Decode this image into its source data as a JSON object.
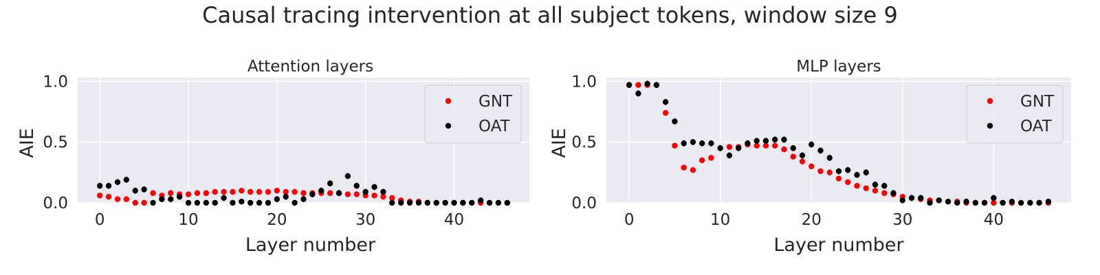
{
  "figure": {
    "title": "Causal tracing intervention at all subject tokens, window size 9"
  },
  "chart_data": [
    {
      "type": "scatter",
      "title": "Attention layers",
      "xlabel": "Layer number",
      "ylabel": "AIE",
      "xlim": [
        -2.5,
        48.5
      ],
      "ylim": [
        0,
        1.03
      ],
      "xticks": [
        0,
        10,
        20,
        30,
        40
      ],
      "yticks": [
        0.0,
        0.5,
        1.0
      ],
      "xtick_labels": [
        "0",
        "10",
        "20",
        "30",
        "40"
      ],
      "ytick_labels": [
        "0.0",
        "0.5",
        "1.0"
      ],
      "grid": true,
      "legend_position": "top-right",
      "series": [
        {
          "name": "GNT",
          "color": "#ff0000",
          "x": [
            0,
            1,
            2,
            3,
            4,
            5,
            6,
            7,
            8,
            9,
            10,
            11,
            12,
            13,
            14,
            15,
            16,
            17,
            18,
            19,
            20,
            21,
            22,
            23,
            24,
            25,
            26,
            27,
            28,
            29,
            30,
            31,
            32,
            33,
            34,
            35,
            36,
            37,
            38,
            39,
            40,
            41,
            42,
            43,
            44,
            45,
            46
          ],
          "y": [
            0.06,
            0.05,
            0.03,
            0.03,
            0.0,
            0.0,
            0.08,
            0.06,
            0.08,
            0.07,
            0.07,
            0.08,
            0.08,
            0.09,
            0.09,
            0.09,
            0.1,
            0.09,
            0.09,
            0.09,
            0.1,
            0.09,
            0.09,
            0.08,
            0.08,
            0.08,
            0.08,
            0.08,
            0.07,
            0.07,
            0.06,
            0.06,
            0.05,
            0.04,
            0.02,
            0.01,
            0.01,
            0.0,
            0.0,
            0.0,
            0.0,
            0.0,
            0.0,
            0.0,
            0.0,
            0.0,
            0.0
          ]
        },
        {
          "name": "OAT",
          "color": "#000000",
          "x": [
            0,
            1,
            2,
            3,
            4,
            5,
            6,
            7,
            8,
            9,
            10,
            11,
            12,
            13,
            14,
            15,
            16,
            17,
            18,
            19,
            20,
            21,
            22,
            23,
            24,
            25,
            26,
            27,
            28,
            29,
            30,
            31,
            32,
            33,
            34,
            35,
            36,
            37,
            38,
            39,
            40,
            41,
            42,
            43,
            44,
            45,
            46
          ],
          "y": [
            0.14,
            0.14,
            0.17,
            0.19,
            0.1,
            0.11,
            0.0,
            0.03,
            0.03,
            0.05,
            0.0,
            0.0,
            0.0,
            0.0,
            0.04,
            0.0,
            0.01,
            0.0,
            0.0,
            0.0,
            0.03,
            0.05,
            0.0,
            0.03,
            0.07,
            0.1,
            0.16,
            0.08,
            0.22,
            0.14,
            0.09,
            0.13,
            0.09,
            0.0,
            0.0,
            0.0,
            0.0,
            0.0,
            0.0,
            0.0,
            0.0,
            0.0,
            0.0,
            0.02,
            0.0,
            0.0,
            0.0
          ]
        }
      ]
    },
    {
      "type": "scatter",
      "title": "MLP layers",
      "xlabel": "Layer number",
      "ylabel": "AIE",
      "xlim": [
        -2.5,
        48.5
      ],
      "ylim": [
        0,
        1.03
      ],
      "xticks": [
        0,
        10,
        20,
        30,
        40
      ],
      "yticks": [
        0.0,
        0.5,
        1.0
      ],
      "xtick_labels": [
        "0",
        "10",
        "20",
        "30",
        "40"
      ],
      "ytick_labels": [
        "0.0",
        "0.5",
        "1.0"
      ],
      "grid": true,
      "legend_position": "top-right",
      "series": [
        {
          "name": "GNT",
          "color": "#ff0000",
          "x": [
            0,
            1,
            2,
            3,
            4,
            5,
            6,
            7,
            8,
            9,
            10,
            11,
            12,
            13,
            14,
            15,
            16,
            17,
            18,
            19,
            20,
            21,
            22,
            23,
            24,
            25,
            26,
            27,
            28,
            29,
            30,
            31,
            32,
            33,
            34,
            35,
            36,
            37,
            38,
            39,
            40,
            41,
            42,
            43,
            44,
            45,
            46
          ],
          "y": [
            0.97,
            0.97,
            0.97,
            0.97,
            0.74,
            0.47,
            0.29,
            0.27,
            0.35,
            0.37,
            0.45,
            0.46,
            0.46,
            0.48,
            0.47,
            0.47,
            0.47,
            0.44,
            0.38,
            0.34,
            0.3,
            0.26,
            0.25,
            0.2,
            0.17,
            0.14,
            0.12,
            0.1,
            0.08,
            0.07,
            0.05,
            0.04,
            0.03,
            0.02,
            0.02,
            0.01,
            0.01,
            0.0,
            0.0,
            0.0,
            0.0,
            0.0,
            0.0,
            0.0,
            0.0,
            0.0,
            0.0
          ]
        },
        {
          "name": "OAT",
          "color": "#000000",
          "x": [
            0,
            1,
            2,
            3,
            4,
            5,
            6,
            7,
            8,
            9,
            10,
            11,
            12,
            13,
            14,
            15,
            16,
            17,
            18,
            19,
            20,
            21,
            22,
            23,
            24,
            25,
            26,
            27,
            28,
            29,
            30,
            31,
            32,
            33,
            34,
            35,
            36,
            37,
            38,
            39,
            40,
            41,
            42,
            43,
            44,
            45,
            46
          ],
          "y": [
            0.97,
            0.9,
            0.98,
            0.97,
            0.83,
            0.67,
            0.49,
            0.5,
            0.49,
            0.49,
            0.45,
            0.39,
            0.45,
            0.49,
            0.51,
            0.51,
            0.52,
            0.52,
            0.45,
            0.39,
            0.48,
            0.43,
            0.37,
            0.26,
            0.27,
            0.23,
            0.25,
            0.15,
            0.14,
            0.08,
            0.02,
            0.04,
            0.04,
            0.0,
            0.02,
            0.01,
            0.0,
            0.01,
            0.0,
            0.0,
            0.04,
            0.0,
            0.01,
            0.0,
            0.0,
            0.0,
            0.01
          ]
        }
      ]
    }
  ]
}
